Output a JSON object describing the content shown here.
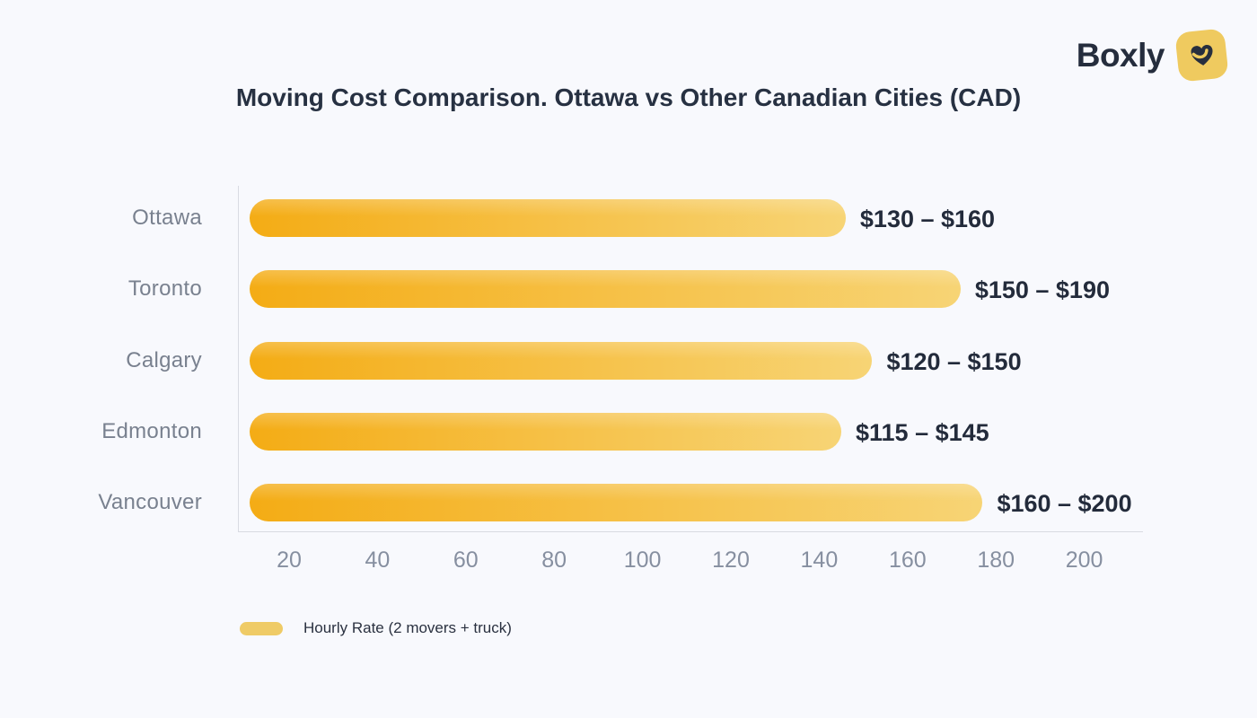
{
  "logo": {
    "text": "Boxly"
  },
  "title": "Moving Cost Comparison. Ottawa vs Other Canadian Cities (CAD)",
  "legend": {
    "label": "Hourly Rate (2 movers + truck)"
  },
  "colors": {
    "background": "#F8F9FD",
    "bar_gradient_start": "#F4AC15",
    "bar_gradient_end": "#F7D475",
    "logo_yellow": "#EFCA5F",
    "legend_swatch": "#EFCB66",
    "text_dark": "#262E3E",
    "text_grey": "#79818F",
    "axis_line": "#D9DBE2"
  },
  "chart_data": {
    "type": "bar",
    "orientation": "horizontal",
    "title": "Moving Cost Comparison. Ottawa vs Other Canadian Cities (CAD)",
    "xlabel": "",
    "ylabel": "",
    "categories": [
      "Ottawa",
      "Toronto",
      "Calgary",
      "Edmonton",
      "Vancouver"
    ],
    "rows": [
      {
        "city": "Ottawa",
        "range_label": "$130 – $160",
        "min": 130,
        "max": 160,
        "bar_end_value": 146
      },
      {
        "city": "Toronto",
        "range_label": "$150 – $190",
        "min": 150,
        "max": 190,
        "bar_end_value": 172
      },
      {
        "city": "Calgary",
        "range_label": "$120 – $150",
        "min": 120,
        "max": 150,
        "bar_end_value": 152
      },
      {
        "city": "Edmonton",
        "range_label": "$115 – $145",
        "min": 115,
        "max": 145,
        "bar_end_value": 145
      },
      {
        "city": "Vancouver",
        "range_label": "$160 – $200",
        "min": 160,
        "max": 200,
        "bar_end_value": 177
      }
    ],
    "x_ticks": [
      20,
      40,
      60,
      80,
      100,
      120,
      140,
      160,
      180,
      200
    ],
    "x_axis_range_shown": [
      20,
      200
    ],
    "grid": "off",
    "legend_entries": [
      "Hourly Rate (2 movers + truck)"
    ],
    "legend_position": "bottom-left",
    "units": "CAD per hour"
  }
}
